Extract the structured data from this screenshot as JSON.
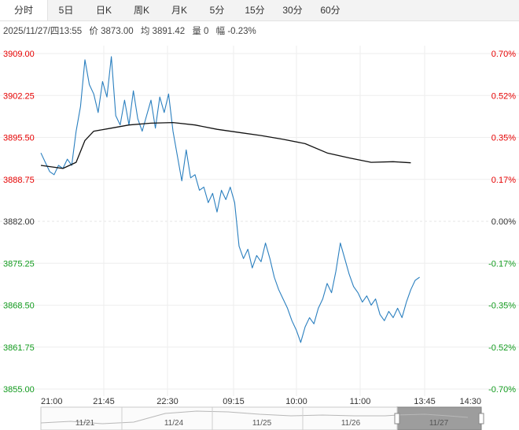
{
  "tabs": [
    {
      "label": "分时",
      "active": true
    },
    {
      "label": "5日",
      "active": false
    },
    {
      "label": "日K",
      "active": false
    },
    {
      "label": "周K",
      "active": false
    },
    {
      "label": "月K",
      "active": false
    },
    {
      "label": "5分",
      "active": false
    },
    {
      "label": "15分",
      "active": false
    },
    {
      "label": "30分",
      "active": false
    },
    {
      "label": "60分",
      "active": false
    }
  ],
  "info": {
    "datetime": "2025/11/27/四13:55",
    "price": "价 3873.00",
    "avg": "均 3891.42",
    "volume": "量 0",
    "change": "幅 -0.23%"
  },
  "colors": {
    "up": "#e60000",
    "down": "#129b1e",
    "flat": "#333333",
    "price_line": "#2a7fbf",
    "avg_line": "#111111",
    "grid": "#eeeeee"
  },
  "chart_data": {
    "type": "line",
    "base_price": 3882.0,
    "ylim": [
      3855.0,
      3909.0
    ],
    "y_ticks": [
      "3909.00",
      "3902.25",
      "3895.50",
      "3888.75",
      "3882.00",
      "3875.25",
      "3868.50",
      "3861.75",
      "3855.00"
    ],
    "pct_ticks": [
      "0.70%",
      "0.52%",
      "0.35%",
      "0.17%",
      "0.00%",
      "-0.17%",
      "-0.35%",
      "-0.52%",
      "-0.70%"
    ],
    "x_ticks": [
      "21:00",
      "21:45",
      "22:30",
      "09:15",
      "10:00",
      "11:00",
      "13:45",
      "14:30"
    ],
    "x_range": [
      0,
      100
    ],
    "series": [
      {
        "role": "price",
        "x": [
          0,
          1,
          2,
          3,
          4,
          5,
          6,
          7,
          8,
          9,
          10,
          11,
          12,
          13,
          14,
          15,
          16,
          17,
          18,
          19,
          20,
          21,
          22,
          23,
          24,
          25,
          26,
          27,
          28,
          29,
          30,
          31,
          32,
          33,
          34,
          35,
          36,
          37,
          38,
          39,
          40,
          41,
          42,
          43,
          44,
          45,
          46,
          47,
          48,
          49,
          50,
          51,
          52,
          53,
          54,
          55,
          56,
          57,
          58,
          59,
          60,
          61,
          62,
          63,
          64,
          65,
          66,
          67,
          68,
          69,
          70,
          71,
          72,
          73,
          74,
          75,
          76,
          77,
          78,
          79,
          80,
          81,
          82,
          83,
          84,
          85,
          86
        ],
        "values": [
          3893.0,
          3891.5,
          3890.0,
          3889.5,
          3891.0,
          3890.5,
          3892.0,
          3891.0,
          3896.5,
          3900.5,
          3908.0,
          3904.0,
          3902.5,
          3899.5,
          3904.5,
          3902.0,
          3908.5,
          3899.0,
          3897.5,
          3901.5,
          3897.5,
          3903.0,
          3898.5,
          3896.5,
          3899.0,
          3901.5,
          3897.0,
          3902.0,
          3899.5,
          3902.5,
          3896.5,
          3892.5,
          3888.5,
          3893.5,
          3889.0,
          3889.5,
          3887.0,
          3887.5,
          3885.0,
          3886.5,
          3883.5,
          3887.0,
          3885.5,
          3887.5,
          3885.0,
          3878.0,
          3876.0,
          3877.5,
          3874.5,
          3876.5,
          3875.5,
          3878.5,
          3876.0,
          3873.0,
          3871.0,
          3869.5,
          3868.0,
          3866.0,
          3864.5,
          3862.5,
          3865.0,
          3866.5,
          3865.5,
          3868.0,
          3869.5,
          3872.0,
          3870.5,
          3874.0,
          3878.5,
          3876.0,
          3873.5,
          3871.5,
          3870.5,
          3869.0,
          3870.0,
          3868.5,
          3869.5,
          3867.0,
          3866.0,
          3867.5,
          3866.5,
          3868.0,
          3866.5,
          3869.0,
          3871.0,
          3872.5,
          3873.0
        ]
      },
      {
        "role": "average",
        "x": [
          0,
          5,
          8,
          10,
          12,
          16,
          20,
          25,
          30,
          35,
          40,
          45,
          50,
          55,
          60,
          65,
          70,
          75,
          80,
          84
        ],
        "values": [
          3891.0,
          3890.5,
          3891.5,
          3895.0,
          3896.5,
          3897.0,
          3897.5,
          3897.8,
          3897.9,
          3897.5,
          3896.8,
          3896.3,
          3895.8,
          3895.2,
          3894.5,
          3893.0,
          3892.2,
          3891.5,
          3891.6,
          3891.42
        ]
      }
    ],
    "grid": true
  },
  "navigator": {
    "labels": [
      "11/21",
      "11/24",
      "11/25",
      "11/26",
      "11/27"
    ]
  }
}
